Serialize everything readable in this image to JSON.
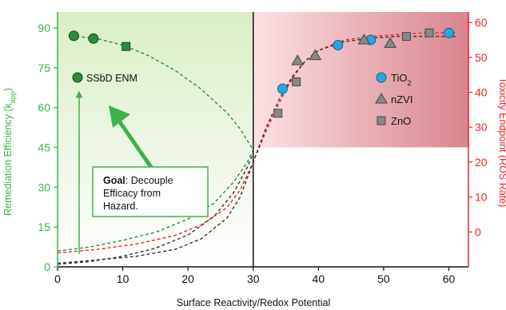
{
  "chart_data": {
    "type": "scatter",
    "xlabel": "Surface Reactivity/Redox Potential",
    "ylabel_left_main": "Remediation Efficiency (k",
    "ylabel_left_sub": "app",
    "ylabel_left_close": ")",
    "ylabel_right": "Toxicity Endpoint (ROS Rate)",
    "xlim": [
      0,
      63
    ],
    "ylim_left": [
      0,
      96
    ],
    "ylim_right": [
      -10,
      63
    ],
    "x_ticks": [
      0,
      10,
      20,
      30,
      40,
      50,
      60
    ],
    "y_left_ticks": [
      0,
      15,
      30,
      45,
      60,
      75,
      90
    ],
    "y_right_ticks": [
      0,
      10,
      20,
      30,
      40,
      50,
      60
    ],
    "y_right_tick_labels": [
      "0",
      "10",
      "20",
      "30",
      "40",
      "50",
      "60"
    ],
    "threshold_x": 30,
    "threshold_y_left": 45,
    "series": [
      {
        "name": "SSbD ENM",
        "axis": "left",
        "marker": "circle",
        "color": "#2e8b3a",
        "x": [
          2.5,
          5.5
        ],
        "y": [
          87,
          86
        ]
      },
      {
        "axis": "left",
        "marker": "square",
        "color": "#2e8b3a",
        "x": [
          10.5
        ],
        "y": [
          83
        ]
      },
      {
        "name": "TiO2",
        "axis": "right",
        "marker": "circle",
        "color": "#22a7e6",
        "x": [
          34.5,
          43,
          48,
          60
        ],
        "y": [
          41,
          53.5,
          55,
          57
        ]
      },
      {
        "name": "nZVI",
        "axis": "right",
        "marker": "triangle",
        "color": "#888888",
        "x": [
          36.8,
          39.5,
          47,
          51
        ],
        "y": [
          49,
          50.5,
          55,
          54
        ]
      },
      {
        "name": "ZnO",
        "axis": "right",
        "marker": "square",
        "color": "#888888",
        "x": [
          33.8,
          36.6,
          53.5,
          57
        ],
        "y": [
          34,
          43,
          56,
          57
        ]
      }
    ],
    "curves": [
      {
        "axis": "left",
        "color": "#2e8b3a",
        "x": [
          2,
          6,
          10,
          14,
          18,
          22,
          26,
          28,
          30
        ],
        "y": [
          87,
          86,
          83.5,
          79.5,
          74,
          67,
          58,
          52,
          44
        ]
      },
      {
        "axis": "left",
        "color": "#2e8b3a",
        "x": [
          0,
          5,
          10,
          15,
          20,
          24,
          27,
          29,
          30
        ],
        "y": [
          6,
          7.5,
          10,
          13,
          18,
          24,
          32,
          39,
          44
        ]
      },
      {
        "axis": "left",
        "color": "#333333",
        "x": [
          0,
          5,
          10,
          15,
          20,
          24,
          27,
          29,
          30
        ],
        "y": [
          1,
          2,
          4,
          7,
          12,
          19,
          28,
          37,
          43
        ]
      },
      {
        "axis": "right",
        "color": "#ee2222",
        "x": [
          0,
          6,
          12,
          18,
          22,
          26,
          28,
          30,
          32,
          34,
          36,
          38,
          40,
          44,
          48,
          52,
          56,
          61
        ],
        "y": [
          -6,
          -5,
          -3.5,
          -1,
          2,
          7,
          12,
          20,
          29,
          37,
          44,
          49,
          52,
          55,
          56,
          56.5,
          57,
          57
        ]
      },
      {
        "axis": "right",
        "color": "#333333",
        "x": [
          0,
          6,
          12,
          18,
          22,
          26,
          28,
          30,
          32,
          34,
          36,
          38,
          40,
          44,
          48,
          52,
          56,
          61
        ],
        "y": [
          -9,
          -8,
          -7,
          -5,
          -2,
          4,
          10,
          20,
          30,
          38,
          44.5,
          49,
          52,
          54.5,
          55.5,
          56,
          56,
          56
        ]
      }
    ],
    "legend": [
      {
        "label": "TiO",
        "sub": "2",
        "marker": "circle",
        "color": "#22a7e6"
      },
      {
        "label": "nZVI",
        "marker": "triangle",
        "color": "#888888"
      },
      {
        "label": "ZnO",
        "marker": "square",
        "color": "#888888"
      }
    ],
    "annotations": {
      "enm_label": "SSbD ENM",
      "goal_bold": "Goal",
      "goal_line1": ": Decouple",
      "goal_line2": "Efficacy from",
      "goal_line3": "Hazard."
    },
    "colors": {
      "left_axis": "#3cb24a",
      "right_axis": "#e8262a",
      "left_panel": "#e3f2d4",
      "right_panel": "#e89aa2"
    }
  }
}
